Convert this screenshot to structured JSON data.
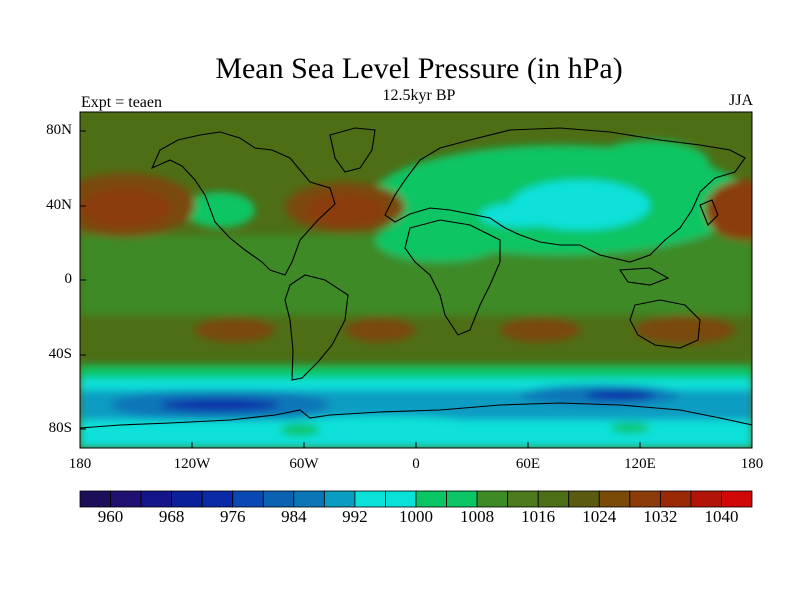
{
  "title": "Mean Sea Level Pressure (in hPa)",
  "subtitle": "12.5kyr BP",
  "left_label": "Expt = teaen",
  "right_label": "JJA",
  "lat_labels": [
    "80N",
    "40N",
    "0",
    "40S",
    "80S"
  ],
  "lon_labels": [
    "180",
    "120W",
    "60W",
    "0",
    "60E",
    "120E",
    "180"
  ],
  "colorbar": {
    "labels": [
      "960",
      "968",
      "976",
      "984",
      "992",
      "1000",
      "1008",
      "1016",
      "1024",
      "1032",
      "1040"
    ],
    "colors": [
      "#1d0e5a",
      "#201071",
      "#151488",
      "#0c1f9b",
      "#0b2aa8",
      "#0a49b3",
      "#0b62b3",
      "#0a76b8",
      "#0a9cc2",
      "#0ae1d9",
      "#0ae1d9",
      "#0ac563",
      "#0ac563",
      "#3e8a26",
      "#4d7a1c",
      "#4e6e16",
      "#5a5a10",
      "#7a4a08",
      "#8b3c08",
      "#9a2a05",
      "#b21507",
      "#d00808"
    ]
  },
  "map_colors": {
    "background": "#4e6e16",
    "green_mid": "#3e8a26",
    "green_light": "#0ac563",
    "cyan": "#0ae1d9",
    "teal": "#0a9cc2",
    "blue_mid": "#0a76b8",
    "blue_dark": "#0b2aa8",
    "brown": "#7a4a08",
    "red": "#8b3c08"
  }
}
